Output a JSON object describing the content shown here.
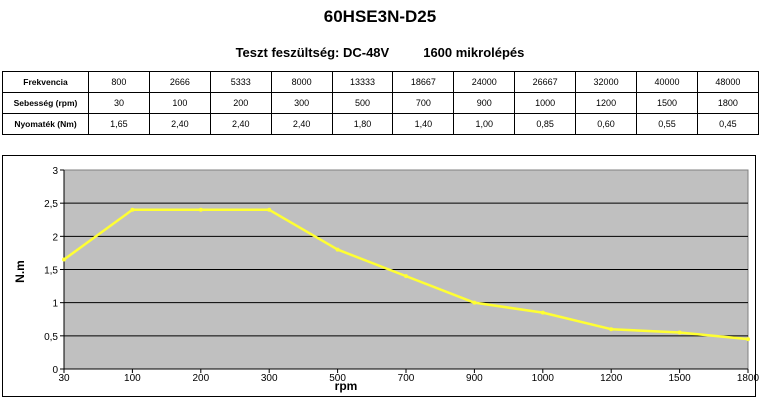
{
  "title": "60HSE3N-D25",
  "subtitle": {
    "voltage": "Teszt feszültség: DC-48V",
    "microstep": "1600 mikrolépés"
  },
  "table": {
    "rows": [
      {
        "label": "Frekvencia",
        "values": [
          "800",
          "2666",
          "5333",
          "8000",
          "13333",
          "18667",
          "24000",
          "26667",
          "32000",
          "40000",
          "48000"
        ]
      },
      {
        "label": "Sebesség (rpm)",
        "values": [
          "30",
          "100",
          "200",
          "300",
          "500",
          "700",
          "900",
          "1000",
          "1200",
          "1500",
          "1800"
        ]
      },
      {
        "label": "Nyomaték (Nm)",
        "values": [
          "1,65",
          "2,40",
          "2,40",
          "2,40",
          "1,80",
          "1,40",
          "1,00",
          "0,85",
          "0,60",
          "0,55",
          "0,45"
        ]
      }
    ]
  },
  "chart_data": {
    "type": "line",
    "categories": [
      "30",
      "100",
      "200",
      "300",
      "500",
      "700",
      "900",
      "1000",
      "1200",
      "1500",
      "1800"
    ],
    "series": [
      {
        "values": [
          1.65,
          2.4,
          2.4,
          2.4,
          1.8,
          1.4,
          1.0,
          0.85,
          0.6,
          0.55,
          0.45
        ]
      }
    ],
    "xlabel": "rpm",
    "ylabel": "N.m",
    "ylim": [
      0,
      3
    ],
    "yticks": [
      "0",
      "0,5",
      "1",
      "1,5",
      "2",
      "2,5",
      "3"
    ],
    "grid": true,
    "plot_background": "#c0c0c0",
    "line_color": "#ffff33"
  }
}
